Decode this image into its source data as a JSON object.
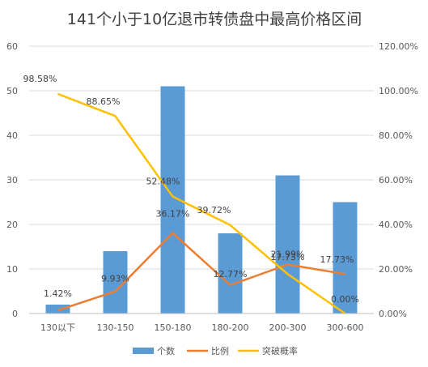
{
  "chart_data": {
    "type": "bar",
    "title": "141个小于10亿退市转债盘中最高价格区间",
    "categories": [
      "130以下",
      "130-150",
      "150-180",
      "180-200",
      "200-300",
      "300-600"
    ],
    "y_left": {
      "ticks": [
        "0",
        "10",
        "20",
        "30",
        "40",
        "50",
        "60"
      ],
      "range": [
        0,
        60
      ]
    },
    "y_right": {
      "ticks": [
        "0.00%",
        "20.00%",
        "40.00%",
        "60.00%",
        "80.00%",
        "100.00%",
        "120.00%"
      ],
      "range": [
        0,
        120
      ]
    },
    "series": [
      {
        "name": "个数",
        "kind": "bar",
        "axis": "left",
        "color": "#5B9BD5",
        "values": [
          2,
          14,
          51,
          18,
          31,
          25
        ]
      },
      {
        "name": "比例",
        "kind": "line",
        "axis": "right",
        "color": "#ED7D31",
        "values": [
          1.42,
          9.93,
          36.17,
          12.77,
          21.99,
          17.73
        ],
        "labels": [
          "1.42%",
          "9.93%",
          "36.17%",
          "12.77%",
          "21.99%",
          "17.73%"
        ]
      },
      {
        "name": "突破概率",
        "kind": "line",
        "axis": "right",
        "color": "#FFC000",
        "values": [
          98.58,
          88.65,
          52.48,
          39.72,
          17.73,
          0.0
        ],
        "labels": [
          "98.58%",
          "88.65%",
          "52.48%",
          "39.72%",
          "17.73%",
          "0.00%"
        ]
      }
    ],
    "grid": true,
    "legend_position": "bottom"
  }
}
